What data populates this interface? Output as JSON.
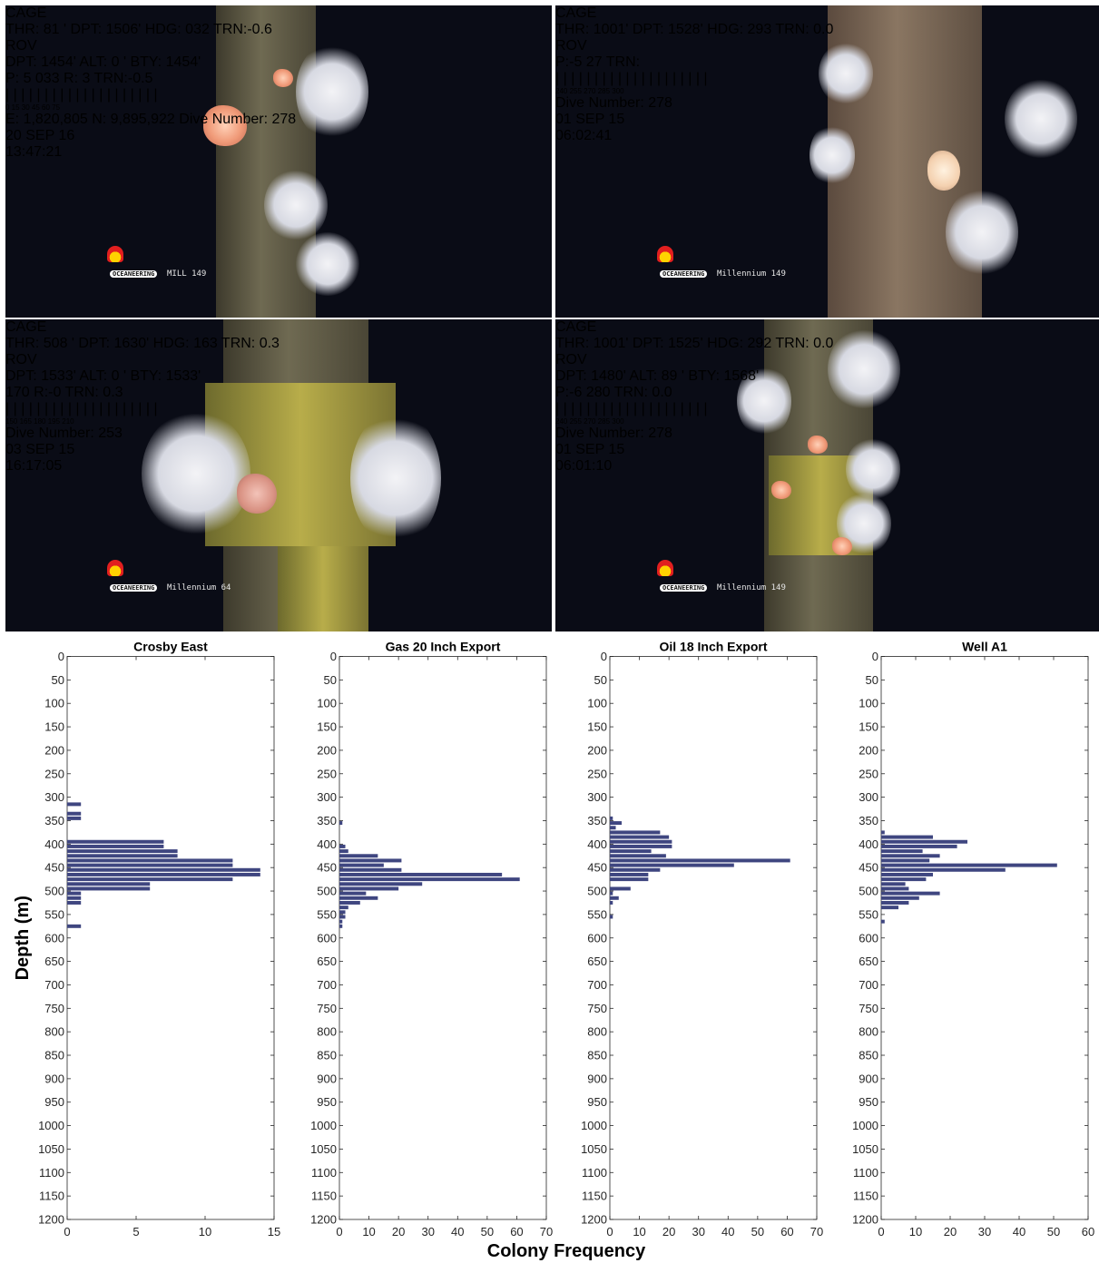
{
  "photos": [
    {
      "left_label": "CAGE",
      "left_lines": [
        "THR: 81  '",
        "DPT: 1506'",
        "HDG: 032",
        "TRN:-0.6"
      ],
      "right_label": "ROV",
      "right_lines": [
        "DPT: 1454'",
        "ALT: 0   '",
        "BTY: 1454'"
      ],
      "center_lines": [
        "P: 5        033      R: 3",
        "          TRN:-0.5"
      ],
      "heading_ticks": [
        "0",
        "15",
        "30",
        "45",
        "60",
        "75"
      ],
      "company": "OCEANEERING",
      "vessel": "MILL 149",
      "bottom_center": "E: 1,820,805  N: 9,895,922\nDive Number: 278",
      "date": "20 SEP 16",
      "time": "13:47:21"
    },
    {
      "left_label": "CAGE",
      "left_lines": [
        "THR: 1001'",
        "DPT: 1528'",
        "HDG: 293",
        "TRN: 0.0"
      ],
      "right_label": "ROV",
      "right_lines": [],
      "center_lines": [
        "P:-5         27",
        "       TRN:"
      ],
      "heading_ticks": [
        "240",
        "255",
        "270",
        "285",
        "300"
      ],
      "company": "OCEANEERING",
      "vessel": "Millennium 149",
      "bottom_center": "Dive Number: 278",
      "date": "01 SEP 15",
      "time": "06:02:41"
    },
    {
      "left_label": "CAGE",
      "left_lines": [
        "THR: 508  '",
        "DPT: 1630'",
        "HDG: 163",
        "TRN: 0.3"
      ],
      "right_label": "ROV",
      "right_lines": [
        "DPT: 1533'",
        "ALT: 0   '",
        "BTY: 1533'"
      ],
      "center_lines": [
        "          170      R:-0",
        "       TRN: 0.3"
      ],
      "heading_ticks": [
        "150",
        "165",
        "180",
        "195",
        "210"
      ],
      "company": "OCEANEERING",
      "vessel": "Millennium 64",
      "bottom_center": "Dive Number: 253",
      "date": "03 SEP 15",
      "time": "16:17:05"
    },
    {
      "left_label": "CAGE",
      "left_lines": [
        "THR: 1001'",
        "DPT: 1525'",
        "HDG: 292",
        "TRN: 0.0"
      ],
      "right_label": "ROV",
      "right_lines": [
        "DPT: 1480'",
        "ALT: 89  '",
        "BTY: 1568'"
      ],
      "center_lines": [
        "P:-6         280",
        "           TRN: 0.0"
      ],
      "heading_ticks": [
        "240",
        "255",
        "270",
        "285",
        "300"
      ],
      "company": "OCEANEERING",
      "vessel": "Millennium 149",
      "bottom_center": "Dive Number: 278",
      "date": "01 SEP 15",
      "time": "06:01:10"
    }
  ],
  "chart_data": {
    "type": "bar",
    "orientation": "horizontal",
    "ylabel": "Depth (m)",
    "xlabel": "Colony Frequency",
    "bar_color": "#3f4680",
    "y_reversed": true,
    "ylim": [
      0,
      1200
    ],
    "yticks": [
      0,
      50,
      100,
      150,
      200,
      250,
      300,
      350,
      400,
      450,
      500,
      550,
      600,
      650,
      700,
      750,
      800,
      850,
      900,
      950,
      1000,
      1050,
      1100,
      1150,
      1200
    ],
    "bin_width": 10,
    "grid": false,
    "panels": [
      {
        "title": "Crosby East",
        "xlim": [
          0,
          15
        ],
        "xticks": [
          0,
          5,
          10,
          15
        ],
        "bins": [
          [
            310,
            1
          ],
          [
            330,
            1
          ],
          [
            340,
            1
          ],
          [
            390,
            7
          ],
          [
            400,
            7
          ],
          [
            410,
            8
          ],
          [
            420,
            8
          ],
          [
            430,
            12
          ],
          [
            440,
            12
          ],
          [
            450,
            14
          ],
          [
            460,
            14
          ],
          [
            470,
            12
          ],
          [
            480,
            6
          ],
          [
            490,
            6
          ],
          [
            500,
            1
          ],
          [
            510,
            1
          ],
          [
            520,
            1
          ],
          [
            570,
            1
          ]
        ]
      },
      {
        "title": "Gas 20 Inch Export",
        "xlim": [
          0,
          70
        ],
        "xticks": [
          0,
          10,
          20,
          30,
          40,
          50,
          60,
          70
        ],
        "bins": [
          [
            350,
            1
          ],
          [
            400,
            2
          ],
          [
            410,
            3
          ],
          [
            420,
            13
          ],
          [
            430,
            21
          ],
          [
            440,
            15
          ],
          [
            450,
            21
          ],
          [
            460,
            55
          ],
          [
            470,
            61
          ],
          [
            480,
            28
          ],
          [
            490,
            20
          ],
          [
            500,
            9
          ],
          [
            510,
            13
          ],
          [
            520,
            7
          ],
          [
            530,
            3
          ],
          [
            540,
            2
          ],
          [
            550,
            2
          ],
          [
            560,
            1
          ],
          [
            570,
            1
          ]
        ]
      },
      {
        "title": "Oil 18 Inch Export",
        "xlim": [
          0,
          70
        ],
        "xticks": [
          0,
          10,
          20,
          30,
          40,
          50,
          60,
          70
        ],
        "bins": [
          [
            340,
            1
          ],
          [
            350,
            4
          ],
          [
            360,
            2
          ],
          [
            370,
            17
          ],
          [
            380,
            20
          ],
          [
            390,
            21
          ],
          [
            400,
            21
          ],
          [
            410,
            14
          ],
          [
            420,
            19
          ],
          [
            430,
            61
          ],
          [
            440,
            42
          ],
          [
            450,
            17
          ],
          [
            460,
            13
          ],
          [
            470,
            13
          ],
          [
            490,
            7
          ],
          [
            500,
            1
          ],
          [
            510,
            3
          ],
          [
            520,
            1
          ],
          [
            550,
            1
          ]
        ]
      },
      {
        "title": "Well A1",
        "xlim": [
          0,
          60
        ],
        "xticks": [
          0,
          10,
          20,
          30,
          40,
          50,
          60
        ],
        "bins": [
          [
            370,
            1
          ],
          [
            380,
            15
          ],
          [
            390,
            25
          ],
          [
            400,
            22
          ],
          [
            410,
            12
          ],
          [
            420,
            17
          ],
          [
            430,
            14
          ],
          [
            440,
            51
          ],
          [
            450,
            36
          ],
          [
            460,
            15
          ],
          [
            470,
            13
          ],
          [
            480,
            7
          ],
          [
            490,
            8
          ],
          [
            500,
            17
          ],
          [
            510,
            11
          ],
          [
            520,
            8
          ],
          [
            530,
            5
          ],
          [
            560,
            1
          ]
        ]
      }
    ]
  }
}
